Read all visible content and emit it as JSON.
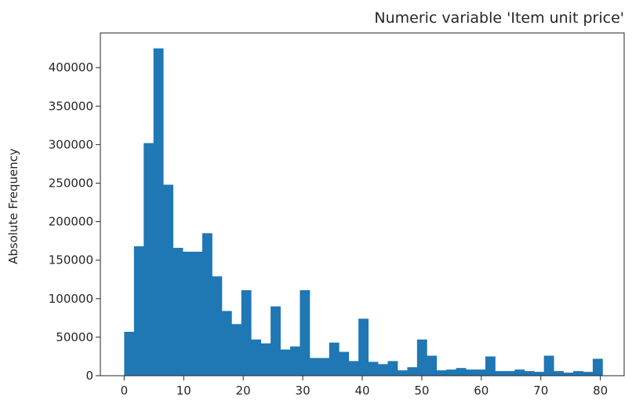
{
  "chart_data": {
    "type": "bar",
    "title": "Numeric variable 'Item unit price'",
    "xlabel": "",
    "ylabel": "Absolute Frequency",
    "bin_width": 1.64,
    "bin_starts": [
      0.0,
      1.64,
      3.28,
      4.92,
      6.56,
      8.2,
      9.84,
      11.48,
      13.12,
      14.76,
      16.4,
      18.04,
      19.68,
      21.32,
      22.96,
      24.6,
      26.24,
      27.88,
      29.52,
      31.16,
      32.8,
      34.44,
      36.08,
      37.72,
      39.36,
      41.0,
      42.64,
      44.28,
      45.92,
      47.56,
      49.2,
      50.84,
      52.48,
      54.12,
      55.76,
      57.4,
      59.04,
      60.68,
      62.32,
      63.96,
      65.6,
      67.24,
      68.88,
      70.52,
      72.16,
      73.8,
      75.44,
      77.08,
      78.72
    ],
    "values": [
      57000,
      168000,
      302000,
      425000,
      248000,
      166000,
      161000,
      161000,
      185000,
      129000,
      84000,
      67000,
      111000,
      47000,
      42000,
      90000,
      34000,
      38000,
      111000,
      23000,
      23000,
      43000,
      31000,
      19000,
      74000,
      18000,
      15000,
      19000,
      7000,
      11000,
      47000,
      26000,
      7000,
      8000,
      10000,
      8000,
      8000,
      25000,
      6000,
      6000,
      8000,
      6000,
      5000,
      26000,
      6000,
      4000,
      6000,
      5000,
      22000
    ],
    "xlim": [
      -4,
      84
    ],
    "ylim": [
      0,
      445000
    ],
    "x_ticks": [
      0,
      10,
      20,
      30,
      40,
      50,
      60,
      70,
      80
    ],
    "y_ticks": [
      0,
      50000,
      100000,
      150000,
      200000,
      250000,
      300000,
      350000,
      400000
    ],
    "x_tick_labels": [
      "0",
      "10",
      "20",
      "30",
      "40",
      "50",
      "60",
      "70",
      "80"
    ],
    "y_tick_labels": [
      "0",
      "50000",
      "100000",
      "150000",
      "200000",
      "250000",
      "300000",
      "350000",
      "400000"
    ],
    "grid": false,
    "colors": {
      "bar": "#1f77b4",
      "axes": "#262626",
      "background": "#ffffff"
    }
  }
}
